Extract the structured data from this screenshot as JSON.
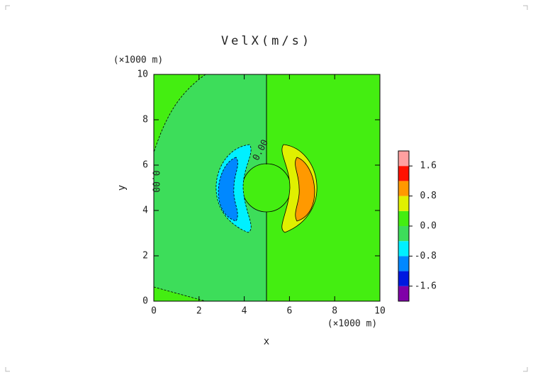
{
  "chart_data": {
    "type": "contour",
    "title": "VelX(m/s)",
    "x_label": "x",
    "y_label": "y",
    "x_unit": "(×1000 m)",
    "y_unit": "(×1000 m)",
    "xlim": [
      0,
      10
    ],
    "xticks": [
      0,
      2,
      4,
      6,
      8,
      10
    ],
    "ylim": [
      0,
      10
    ],
    "yticks": [
      0,
      2,
      4,
      6,
      8,
      10
    ],
    "levels": [
      -1.6,
      -1.2,
      -0.8,
      -0.4,
      0,
      0.4,
      0.8,
      1.2,
      1.6
    ],
    "colors": [
      "#8000a8",
      "#0018e0",
      "#0088ff",
      "#00f0ff",
      "#3ddd5a",
      "#44ee11",
      "#e0f000",
      "#ff9900",
      "#ff1100",
      "#ffa0a0"
    ],
    "colorbar_lim": [
      -2,
      2
    ],
    "colorbar_ticks": [
      -1.6,
      -0.8,
      {
        "value": 0,
        "label": "0.0"
      },
      0.8,
      1.6
    ],
    "contour_labels": [
      "0.00",
      "0.00"
    ]
  }
}
